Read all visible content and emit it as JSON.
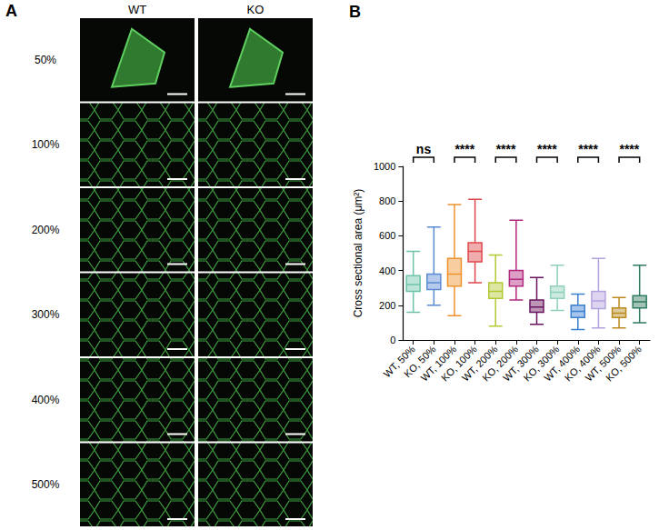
{
  "panel_a": {
    "letter": "A",
    "columns": [
      "WT",
      "KO"
    ],
    "rows": [
      "50%",
      "100%",
      "200%",
      "300%",
      "400%",
      "500%"
    ]
  },
  "chart_data": {
    "type": "boxplot",
    "letter": "B",
    "y_label": "Cross sectional area (μm²)",
    "categories": [
      "WT, 50%",
      "KO, 50%",
      "WT, 100%",
      "KO, 100%",
      "WT, 200%",
      "KO, 200%",
      "WT, 300%",
      "KO, 300%",
      "WT, 400%",
      "KO, 400%",
      "WT, 500%",
      "KO, 500%"
    ],
    "values": [
      [
        160,
        280,
        320,
        370,
        510
      ],
      [
        200,
        290,
        330,
        380,
        650
      ],
      [
        140,
        310,
        380,
        470,
        780
      ],
      [
        330,
        450,
        510,
        560,
        810
      ],
      [
        80,
        240,
        280,
        330,
        490
      ],
      [
        230,
        310,
        350,
        400,
        690
      ],
      [
        90,
        160,
        190,
        230,
        360
      ],
      [
        170,
        240,
        275,
        310,
        430
      ],
      [
        60,
        130,
        165,
        200,
        265
      ],
      [
        70,
        180,
        225,
        280,
        470
      ],
      [
        70,
        130,
        155,
        185,
        245
      ],
      [
        100,
        185,
        220,
        255,
        430
      ]
    ],
    "colors": [
      "#6cc3aa",
      "#5a8ad4",
      "#f0922c",
      "#e0474c",
      "#b5c832",
      "#b3297f",
      "#6a1460",
      "#8fd0b8",
      "#3a7fd0",
      "#b3a2de",
      "#b98a1e",
      "#2f7a5e"
    ],
    "ylim": [
      0,
      1000
    ],
    "yticks": [
      0,
      200,
      400,
      600,
      800,
      1000
    ],
    "grid": false,
    "comparisons": [
      {
        "between": [
          "WT, 50%",
          "KO, 50%"
        ],
        "label": "ns"
      },
      {
        "between": [
          "WT, 100%",
          "KO, 100%"
        ],
        "label": "****"
      },
      {
        "between": [
          "WT, 200%",
          "KO, 200%"
        ],
        "label": "****"
      },
      {
        "between": [
          "WT, 300%",
          "KO, 300%"
        ],
        "label": "****"
      },
      {
        "between": [
          "WT, 400%",
          "KO, 400%"
        ],
        "label": "****"
      },
      {
        "between": [
          "WT, 500%",
          "KO, 500%"
        ],
        "label": "****"
      }
    ]
  }
}
